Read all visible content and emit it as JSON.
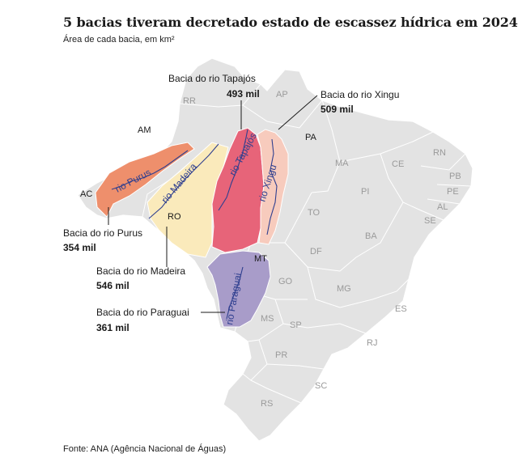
{
  "title": "5 bacias tiveram decretado estado de escassez hídrica em 2024",
  "subtitle": "Área de cada bacia, em km²",
  "source": "Fonte: ANA (Agência Nacional de Águas)",
  "colors": {
    "country": "#e3e3e3",
    "purus": "#ee8f6c",
    "madeira": "#faeabb",
    "tapajos": "#e76479",
    "xingu": "#f7cbbd",
    "paraguai": "#a89cc9",
    "river": "#2f3f8f"
  },
  "basins": [
    {
      "id": "tapajos",
      "name": "Bacia do rio Tapajós",
      "value": "493 mil"
    },
    {
      "id": "xingu",
      "name": "Bacia do rio Xingu",
      "value": "509 mil"
    },
    {
      "id": "purus",
      "name": "Bacia do rio Purus",
      "value": "354 mil"
    },
    {
      "id": "madeira",
      "name": "Bacia do rio Madeira",
      "value": "546 mil"
    },
    {
      "id": "paraguai",
      "name": "Bacia do rio Paraguai",
      "value": "361 mil"
    }
  ],
  "rivers": [
    "rio Purus",
    "rio Madeira",
    "rio Tapajós",
    "rio Xingu",
    "rio Paraguai"
  ],
  "states": [
    "RR",
    "AP",
    "AM",
    "PA",
    "MA",
    "CE",
    "RN",
    "PB",
    "PE",
    "AL",
    "SE",
    "PI",
    "AC",
    "RO",
    "TO",
    "BA",
    "MT",
    "DF",
    "GO",
    "MG",
    "ES",
    "MS",
    "SP",
    "RJ",
    "PR",
    "SC",
    "RS"
  ]
}
